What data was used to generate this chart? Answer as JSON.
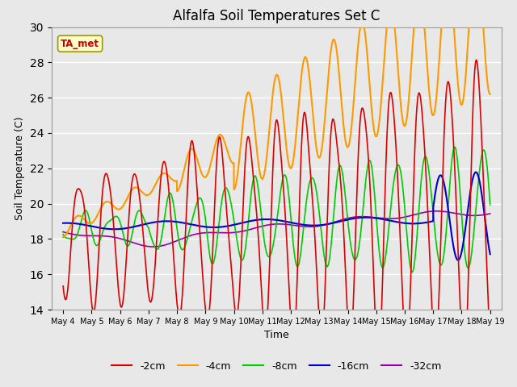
{
  "title": "Alfalfa Soil Temperatures Set C",
  "xlabel": "Time",
  "ylabel": "Soil Temperature (C)",
  "ylim": [
    14,
    30
  ],
  "fig_width": 6.4,
  "fig_height": 4.8,
  "dpi": 100,
  "background_color": "#e8e8e8",
  "plot_bg_color": "#e8e8e8",
  "grid_color": "#ffffff",
  "ta_met_label": "TA_met",
  "ta_met_box_facecolor": "#ffffcc",
  "ta_met_box_edgecolor": "#999900",
  "ta_met_text_color": "#cc0000",
  "legend_labels": [
    "-2cm",
    "-4cm",
    "-8cm",
    "-16cm",
    "-32cm"
  ],
  "line_colors": {
    "m2cm": "#dd0000",
    "m4cm": "#ff9900",
    "m8cm": "#00cc00",
    "m16cm": "#0000cc",
    "m32cm": "#9900aa"
  },
  "start_day": 4.0,
  "end_day": 19.0
}
